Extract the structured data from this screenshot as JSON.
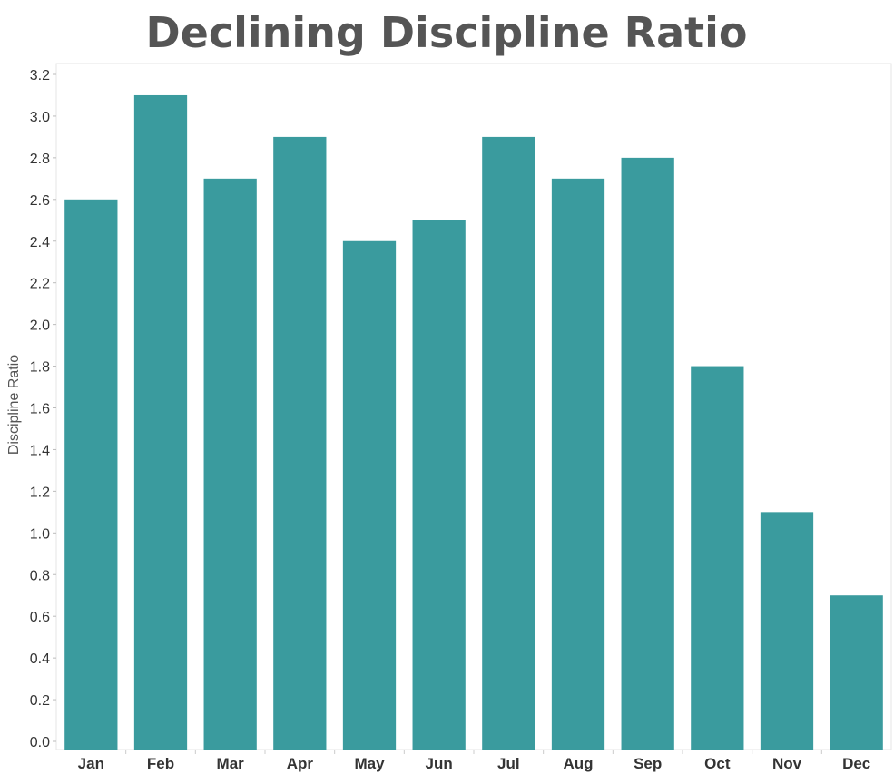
{
  "chart_data": {
    "type": "bar",
    "title": "Declining Discipline Ratio",
    "xlabel": "",
    "ylabel": "Discipline Ratio",
    "categories": [
      "Jan",
      "Feb",
      "Mar",
      "Apr",
      "May",
      "Jun",
      "Jul",
      "Aug",
      "Sep",
      "Oct",
      "Nov",
      "Dec"
    ],
    "values": [
      2.6,
      3.1,
      2.7,
      2.9,
      2.4,
      2.5,
      2.9,
      2.7,
      2.8,
      1.8,
      1.1,
      0.7
    ],
    "ylim": [
      0,
      3.2
    ],
    "yticks": [
      "0.0",
      "0.2",
      "0.4",
      "0.6",
      "0.8",
      "1.0",
      "1.2",
      "1.4",
      "1.6",
      "1.8",
      "2.0",
      "2.2",
      "2.4",
      "2.6",
      "2.8",
      "3.0",
      "3.2"
    ],
    "grid": false,
    "bar_color": "#3a9b9e"
  }
}
